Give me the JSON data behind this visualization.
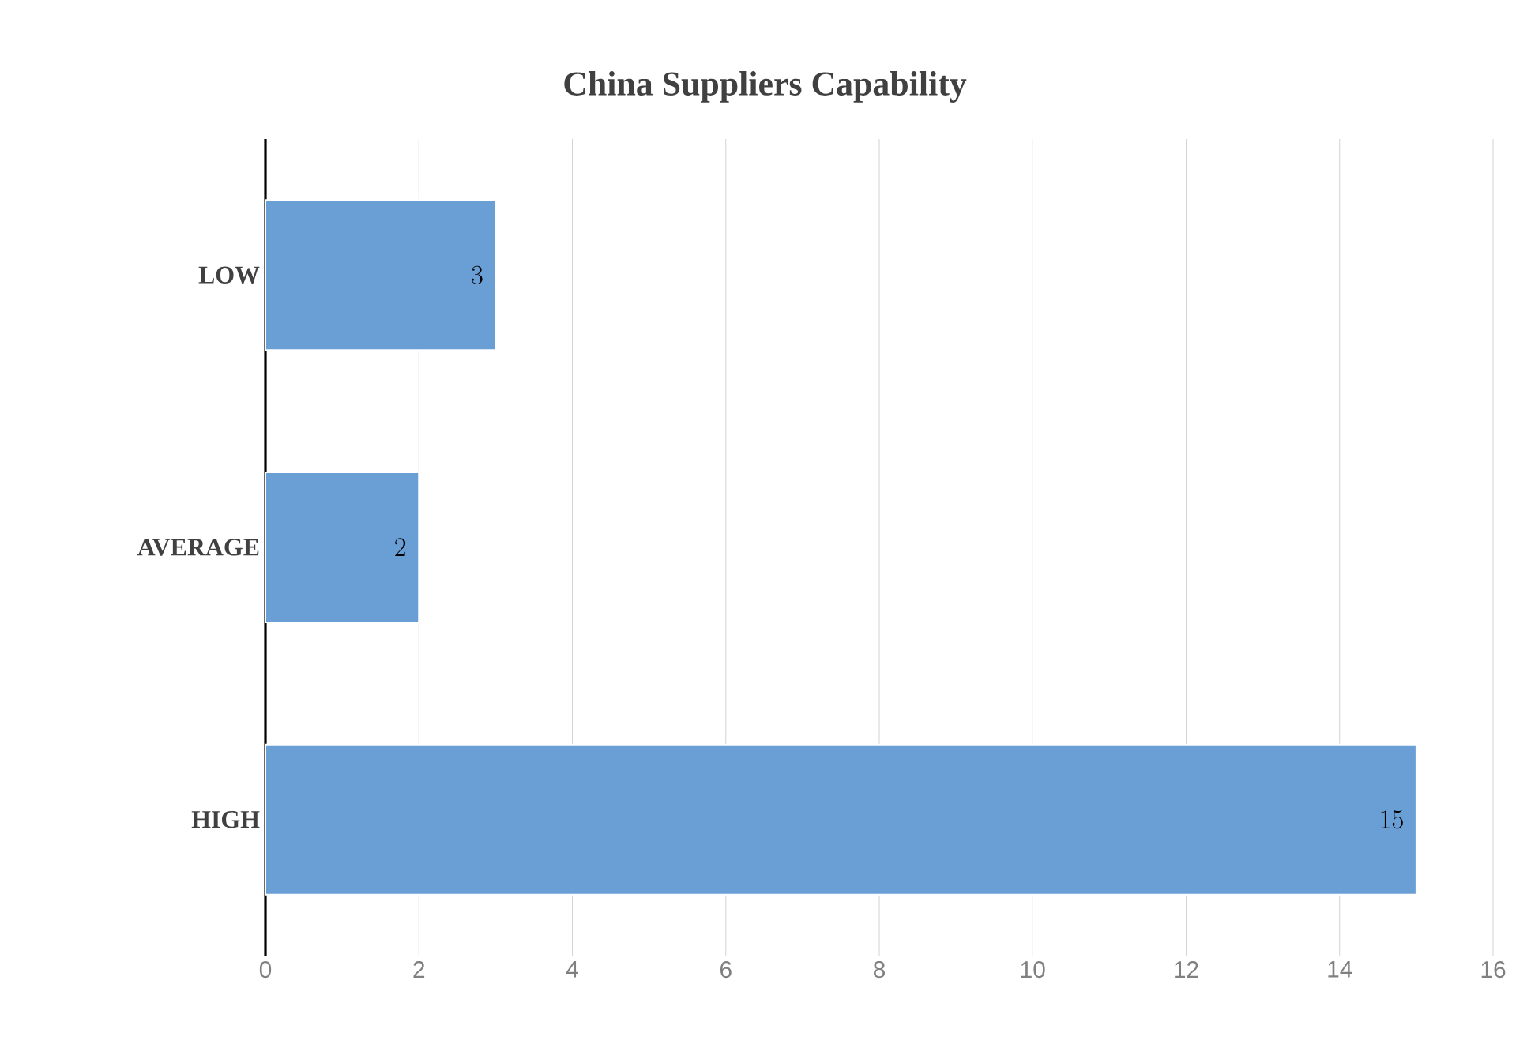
{
  "chart_data": {
    "type": "bar",
    "orientation": "horizontal",
    "title": "China Suppliers Capability",
    "categories": [
      "LOW",
      "AVERAGE",
      "HIGH"
    ],
    "values": [
      3,
      2,
      15
    ],
    "color": "#6a9fd6",
    "xlim": [
      0,
      16
    ],
    "xticks": [
      0,
      2,
      4,
      6,
      8,
      10,
      12,
      14,
      16
    ],
    "grid": "x",
    "data_labels": true
  }
}
